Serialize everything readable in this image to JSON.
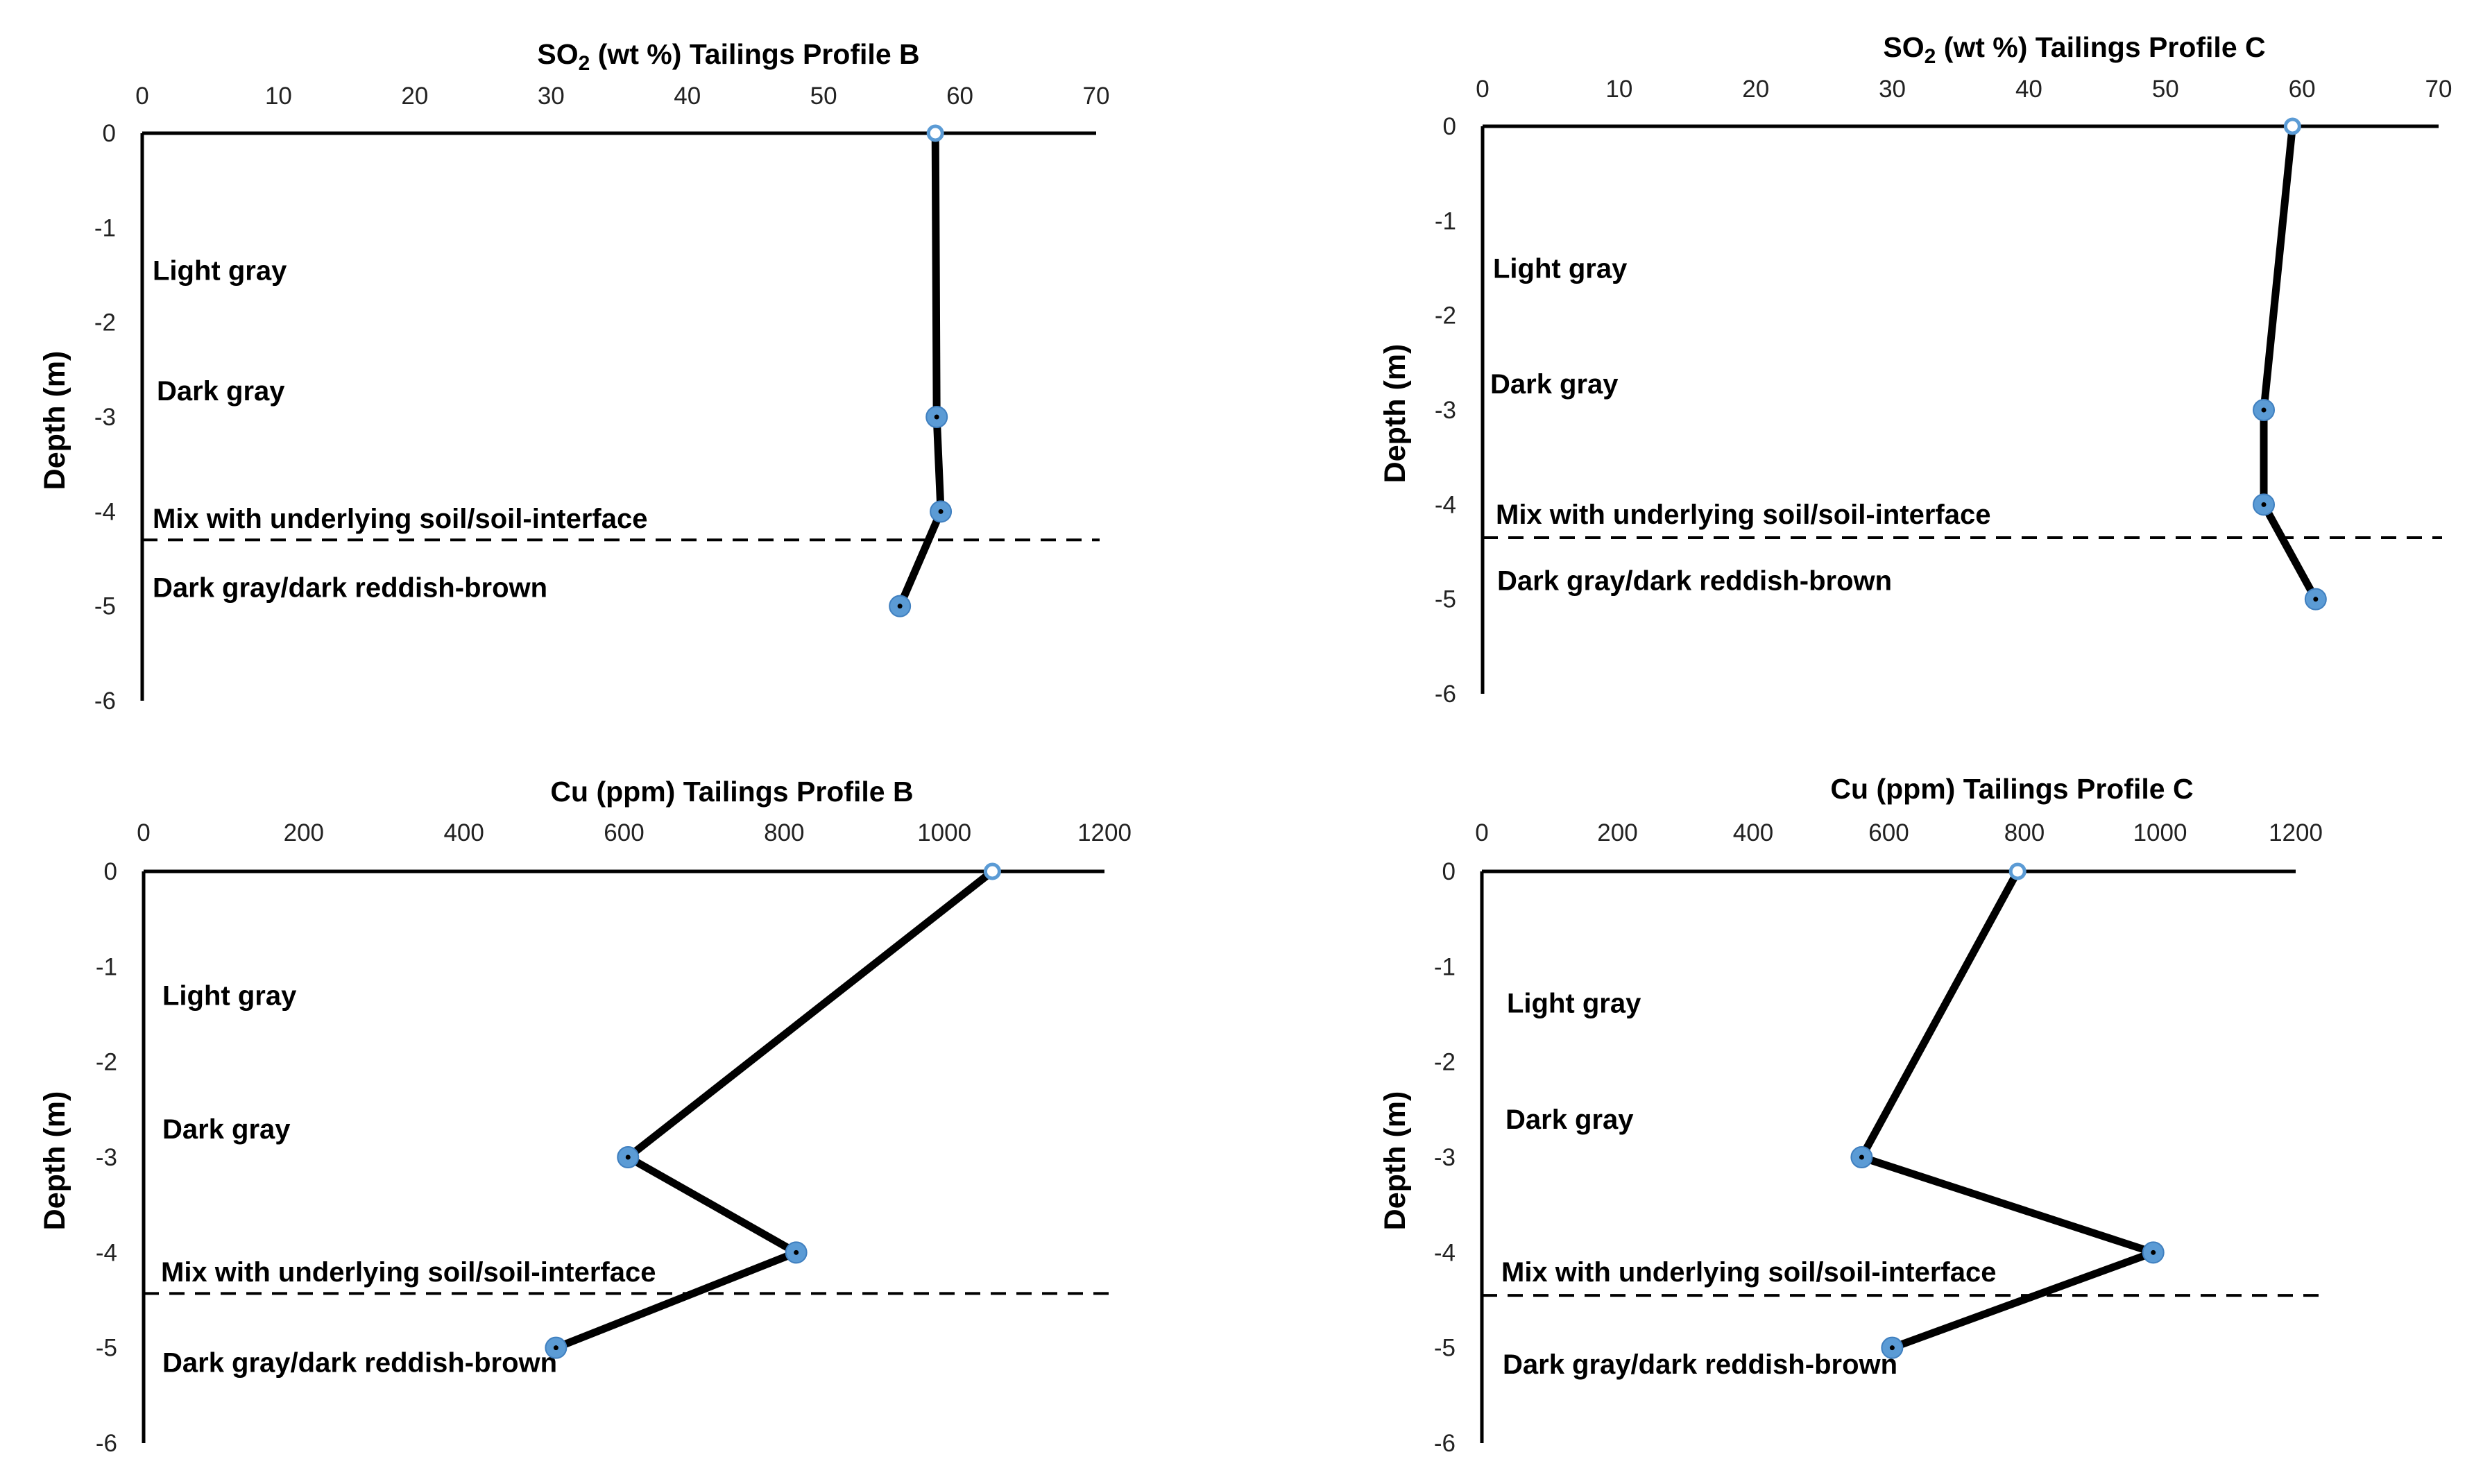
{
  "chart_data": [
    {
      "type": "line",
      "title_prefix": "SO",
      "title_sub": "2",
      "title_rest": " (wt %) Tailings Profile B",
      "ylabel": "Depth (m)",
      "xlim": [
        0,
        70
      ],
      "xticks": [
        0,
        10,
        20,
        30,
        40,
        50,
        60,
        70
      ],
      "ylim": [
        -6,
        0
      ],
      "yticks": [
        0,
        -1,
        -2,
        -3,
        -4,
        -5,
        -6
      ],
      "grid": false,
      "series": [
        {
          "name": "SO2",
          "x": [
            58.2,
            58.3,
            58.6,
            55.6
          ],
          "y": [
            0,
            -3,
            -4,
            -5
          ]
        }
      ],
      "boundary_depth": -4.3,
      "layers": [
        {
          "label": "Light gray",
          "depth": -1.45
        },
        {
          "label": "Dark gray",
          "depth": -2.72
        },
        {
          "label": "Mix with underlying soil/soil-interface",
          "depth": -4.07
        },
        {
          "label": "Dark gray/dark reddish-brown",
          "depth": -4.8
        }
      ]
    },
    {
      "type": "line",
      "title_prefix": "SO",
      "title_sub": "2",
      "title_rest": " (wt %)  Tailings Profile C",
      "ylabel": "Depth (m)",
      "xlim": [
        0,
        70
      ],
      "xticks": [
        0,
        10,
        20,
        30,
        40,
        50,
        60,
        70
      ],
      "ylim": [
        -6,
        0
      ],
      "yticks": [
        0,
        -1,
        -2,
        -3,
        -4,
        -5,
        -6
      ],
      "grid": false,
      "series": [
        {
          "name": "SO2",
          "x": [
            59.3,
            57.2,
            57.2,
            61.0
          ],
          "y": [
            0,
            -3,
            -4,
            -5
          ]
        }
      ],
      "boundary_depth": -4.35,
      "layers": [
        {
          "label": "Light gray",
          "depth": -1.5
        },
        {
          "label": "Dark gray",
          "depth": -2.72
        },
        {
          "label": "Mix with underlying soil/soil-interface",
          "depth": -4.1
        },
        {
          "label": "Dark gray/dark reddish-brown",
          "depth": -4.8
        }
      ]
    },
    {
      "type": "line",
      "title_prefix": "Cu (ppm) Tailings Profile  B",
      "title_sub": "",
      "title_rest": "",
      "ylabel": "Depth (m)",
      "xlim": [
        0,
        1200
      ],
      "xticks": [
        0,
        200,
        400,
        600,
        800,
        1000,
        1200
      ],
      "ylim": [
        -6,
        0
      ],
      "yticks": [
        0,
        -1,
        -2,
        -3,
        -4,
        -5,
        -6
      ],
      "grid": false,
      "series": [
        {
          "name": "Cu",
          "x": [
            1060,
            605,
            815,
            515
          ],
          "y": [
            0,
            -3,
            -4,
            -5
          ]
        }
      ],
      "boundary_depth": -4.43,
      "layers": [
        {
          "label": "Light gray",
          "depth": -1.3
        },
        {
          "label": "Dark gray",
          "depth": -2.7
        },
        {
          "label": "Mix with underlying soil/soil-interface",
          "depth": -4.2
        },
        {
          "label": "Dark gray/dark reddish-brown",
          "depth": -5.15
        }
      ]
    },
    {
      "type": "line",
      "title_prefix": "Cu (ppm)  Tailings Profile C",
      "title_sub": "",
      "title_rest": "",
      "ylabel": "Depth (m)",
      "xlim": [
        0,
        1200
      ],
      "xticks": [
        0,
        200,
        400,
        600,
        800,
        1000,
        1200
      ],
      "ylim": [
        -6,
        0
      ],
      "yticks": [
        0,
        -1,
        -2,
        -3,
        -4,
        -5,
        -6
      ],
      "grid": false,
      "series": [
        {
          "name": "Cu",
          "x": [
            790,
            560,
            990,
            605
          ],
          "y": [
            0,
            -3,
            -4,
            -5
          ]
        }
      ],
      "boundary_depth": -4.45,
      "layers": [
        {
          "label": "Light gray",
          "depth": -1.38
        },
        {
          "label": "Dark gray",
          "depth": -2.6
        },
        {
          "label": "Mix with underlying soil/soil-interface",
          "depth": -4.2
        },
        {
          "label": "Dark gray/dark reddish-brown",
          "depth": -5.17
        }
      ]
    }
  ]
}
